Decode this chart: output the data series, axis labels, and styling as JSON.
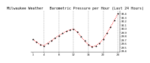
{
  "title": "Milwaukee Weather   Barometric Pressure per Hour (Last 24 Hours)",
  "hours": [
    1,
    2,
    3,
    4,
    5,
    6,
    7,
    8,
    9,
    10,
    11,
    12,
    13,
    14,
    15,
    16,
    17,
    18,
    19,
    20,
    21,
    22,
    23,
    24
  ],
  "pressure": [
    29.72,
    29.65,
    29.58,
    29.55,
    29.62,
    29.68,
    29.75,
    29.82,
    29.88,
    29.93,
    29.97,
    30.0,
    29.92,
    29.8,
    29.68,
    29.58,
    29.52,
    29.55,
    29.62,
    29.72,
    29.88,
    30.05,
    30.22,
    30.4
  ],
  "line_color": "#ff0000",
  "marker_color": "#000000",
  "bg_color": "#ffffff",
  "grid_color": "#999999",
  "ylim_min": 29.38,
  "ylim_max": 30.48,
  "ytick_values": [
    29.4,
    29.5,
    29.6,
    29.7,
    29.8,
    29.9,
    30.0,
    30.1,
    30.2,
    30.3,
    30.4
  ],
  "title_fontsize": 3.8,
  "tick_fontsize": 2.8,
  "vgrid_positions": [
    4,
    8,
    12,
    16,
    20,
    24
  ],
  "xtick_positions": [
    1,
    4,
    8,
    12,
    16,
    20,
    24
  ],
  "xtick_labels": [
    "1",
    "4",
    "8",
    "12",
    "16",
    "20",
    "24"
  ]
}
